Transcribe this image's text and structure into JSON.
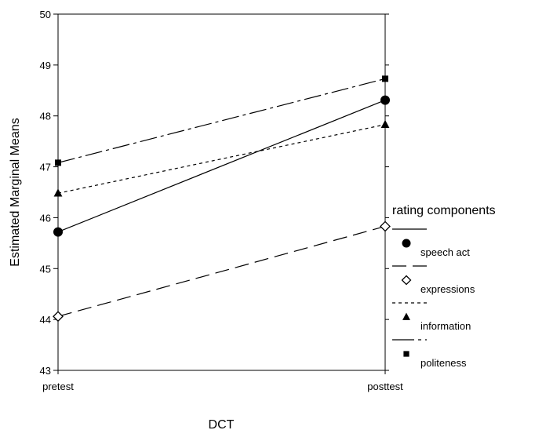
{
  "chart_data": {
    "type": "line",
    "title": "",
    "xlabel": "DCT",
    "ylabel": "Estimated Marginal Means",
    "categories": [
      "pretest",
      "posttest"
    ],
    "ylim": [
      43,
      50
    ],
    "yticks": [
      43,
      44,
      45,
      46,
      47,
      48,
      49,
      50
    ],
    "grid": false,
    "legend": {
      "title": "rating components",
      "position": "right"
    },
    "series": [
      {
        "name": "speech act",
        "values": [
          45.72,
          48.31
        ],
        "marker": "circle",
        "dash": "solid"
      },
      {
        "name": "expressions",
        "values": [
          44.06,
          45.83
        ],
        "marker": "diamond-open",
        "dash": "long-dash"
      },
      {
        "name": "information",
        "values": [
          46.48,
          47.83
        ],
        "marker": "triangle",
        "dash": "short-dash"
      },
      {
        "name": "politeness",
        "values": [
          47.08,
          48.73
        ],
        "marker": "square",
        "dash": "dash-dot"
      }
    ]
  }
}
